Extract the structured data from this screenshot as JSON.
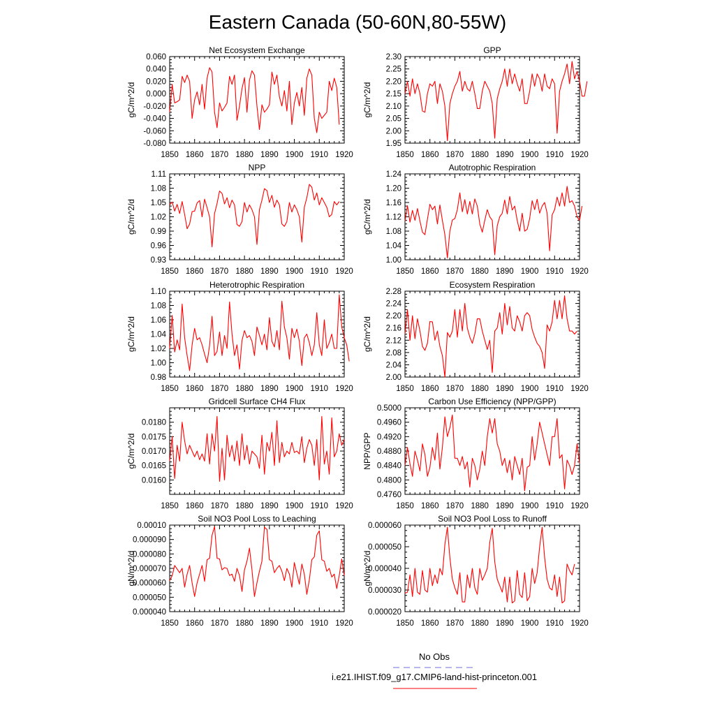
{
  "title": "Eastern Canada (50-60N,80-55W)",
  "series_color": "#ff0000",
  "obs_color": "#6f6fdc",
  "legend": {
    "obs_label": "No Obs",
    "model_label": "i.e21.IHIST.f09_g17.CMIP6-land-hist-princeton.001"
  },
  "chart_data": [
    {
      "type": "line",
      "title": "Net Ecosystem Exchange",
      "ylabel": "gC/m^2/d",
      "xlim": [
        1850,
        1920
      ],
      "xticks": [
        1850,
        1860,
        1870,
        1880,
        1890,
        1900,
        1910,
        1920
      ],
      "ylim": [
        -0.08,
        0.06
      ],
      "yticks": [
        "0.060",
        "0.040",
        "0.020",
        "0.000",
        "-0.020",
        "-0.040",
        "-0.060",
        "-0.080"
      ],
      "x_start": 1850,
      "values": [
        -0.03,
        0.015,
        -0.015,
        -0.013,
        -0.01,
        0.028,
        0.018,
        0.03,
        0.02,
        -0.04,
        -0.01,
        0.003,
        -0.018,
        0.015,
        -0.025,
        0.025,
        0.042,
        0.035,
        -0.03,
        -0.055,
        -0.015,
        -0.028,
        -0.022,
        -0.015,
        0.028,
        0.015,
        0.03,
        -0.043,
        -0.02,
        0.008,
        0.026,
        -0.03,
        0.022,
        0.037,
        0.03,
        -0.02,
        -0.058,
        -0.018,
        -0.03,
        -0.025,
        -0.018,
        0.035,
        0.015,
        0.03,
        -0.005,
        -0.02,
        0.005,
        -0.028,
        0.02,
        -0.05,
        -0.015,
        0.002,
        -0.02,
        0.01,
        -0.035,
        0.025,
        0.04,
        0.03,
        -0.04,
        -0.063,
        -0.03,
        -0.04,
        -0.035,
        -0.03,
        0.02,
        0.005,
        0.025,
        0.01,
        -0.05
      ]
    },
    {
      "type": "line",
      "title": "GPP",
      "ylabel": "gC/m^2/d",
      "xlim": [
        1850,
        1920
      ],
      "xticks": [
        1850,
        1860,
        1870,
        1880,
        1890,
        1900,
        1910,
        1920
      ],
      "ylim": [
        1.95,
        2.3
      ],
      "yticks": [
        "2.30",
        "2.25",
        "2.20",
        "2.15",
        "2.10",
        "2.05",
        "2.00",
        "1.95"
      ],
      "x_start": 1850,
      "values": [
        2.15,
        2.2,
        2.14,
        2.21,
        2.15,
        2.19,
        2.15,
        2.08,
        2.075,
        2.15,
        2.19,
        2.18,
        2.2,
        2.11,
        2.19,
        2.16,
        2.1,
        1.96,
        2.11,
        2.15,
        2.18,
        2.2,
        2.24,
        2.16,
        2.2,
        2.17,
        2.16,
        2.2,
        2.15,
        2.09,
        2.09,
        2.16,
        2.2,
        2.18,
        2.16,
        2.11,
        1.97,
        2.13,
        2.17,
        2.2,
        2.25,
        2.18,
        2.25,
        2.19,
        2.23,
        2.19,
        2.16,
        2.21,
        2.11,
        2.11,
        2.16,
        2.23,
        2.18,
        2.23,
        2.21,
        2.16,
        2.23,
        2.18,
        2.17,
        2.21,
        2.19,
        1.99,
        2.16,
        2.2,
        2.23,
        2.27,
        2.19,
        2.28,
        2.21,
        2.24,
        2.2,
        2.14,
        2.14,
        2.2
      ]
    },
    {
      "type": "line",
      "title": "NPP",
      "ylabel": "gC/m^2/d",
      "xlim": [
        1850,
        1920
      ],
      "xticks": [
        1850,
        1860,
        1870,
        1880,
        1890,
        1900,
        1910,
        1920
      ],
      "ylim": [
        0.93,
        1.11
      ],
      "yticks": [
        "1.11",
        "1.08",
        "1.05",
        "1.02",
        "0.99",
        "0.96",
        "0.93"
      ],
      "x_start": 1850,
      "values": [
        1.045,
        1.051,
        1.032,
        1.046,
        1.027,
        1.052,
        1.025,
        0.995,
        1.005,
        1.031,
        1.032,
        1.049,
        1.054,
        1.02,
        1.057,
        1.039,
        1.02,
        0.957,
        1.027,
        1.048,
        1.074,
        1.069,
        1.047,
        1.06,
        1.039,
        1.055,
        1.045,
        1.004,
        1.0,
        1.01,
        1.05,
        1.03,
        1.045,
        1.035,
        1.02,
        0.962,
        1.035,
        1.055,
        1.079,
        1.075,
        1.05,
        1.065,
        1.04,
        1.055,
        1.045,
        1.005,
        1.0,
        1.01,
        1.05,
        1.03,
        1.045,
        1.035,
        1.02,
        0.967,
        1.04,
        1.06,
        1.088,
        1.082,
        1.055,
        1.07,
        1.045,
        1.06,
        1.05,
        1.04,
        1.02,
        1.025,
        1.052,
        1.045,
        1.052
      ]
    },
    {
      "type": "line",
      "title": "Autotrophic Respiration",
      "ylabel": "gC/m^2/d",
      "xlim": [
        1850,
        1920
      ],
      "xticks": [
        1850,
        1860,
        1870,
        1880,
        1890,
        1900,
        1910,
        1920
      ],
      "ylim": [
        1.0,
        1.24
      ],
      "yticks": [
        "1.24",
        "1.20",
        "1.16",
        "1.12",
        "1.08",
        "1.04",
        "1.00"
      ],
      "x_start": 1850,
      "values": [
        1.108,
        1.151,
        1.105,
        1.138,
        1.11,
        1.143,
        1.108,
        1.077,
        1.07,
        1.113,
        1.155,
        1.14,
        1.15,
        1.1,
        1.153,
        1.11,
        1.07,
        1.005,
        1.08,
        1.111,
        1.115,
        1.14,
        1.187,
        1.134,
        1.168,
        1.128,
        1.163,
        1.128,
        1.17,
        1.15,
        1.1,
        1.077,
        1.11,
        1.14,
        1.12,
        1.11,
        1.014,
        1.095,
        1.12,
        1.13,
        1.167,
        1.128,
        1.177,
        1.139,
        1.15,
        1.11,
        1.08,
        1.13,
        1.08,
        1.085,
        1.115,
        1.165,
        1.14,
        1.169,
        1.13,
        1.15,
        1.16,
        1.13,
        1.025,
        1.125,
        1.14,
        1.175,
        1.15,
        1.187,
        1.15,
        1.205,
        1.16,
        1.165,
        1.15,
        1.12,
        1.11,
        1.15
      ]
    },
    {
      "type": "line",
      "title": "Heterotrophic Respiration",
      "ylabel": "gC/m^2/d",
      "xlim": [
        1850,
        1920
      ],
      "xticks": [
        1850,
        1860,
        1870,
        1880,
        1890,
        1900,
        1910,
        1920
      ],
      "ylim": [
        0.98,
        1.1
      ],
      "yticks": [
        "1.10",
        "1.08",
        "1.06",
        "1.04",
        "1.02",
        "1.00",
        "0.98"
      ],
      "x_start": 1850,
      "values": [
        1.02,
        1.066,
        1.015,
        1.032,
        1.018,
        1.082,
        1.035,
        1.01,
        0.989,
        1.025,
        1.048,
        1.032,
        1.035,
        1.025,
        1.012,
        1.0,
        1.024,
        1.065,
        1.01,
        1.016,
        1.043,
        1.01,
        1.038,
        1.02,
        1.085,
        1.04,
        1.01,
        1.025,
        0.991,
        1.031,
        1.045,
        1.035,
        1.038,
        1.03,
        1.01,
        1.05,
        1.038,
        1.025,
        1.04,
        1.018,
        1.063,
        1.03,
        1.022,
        1.045,
        1.018,
        1.086,
        1.05,
        1.035,
        1.005,
        1.048,
        1.035,
        1.047,
        1.03,
        0.996,
        1.035,
        1.04,
        1.028,
        1.01,
        1.025,
        1.07,
        1.025,
        1.01,
        1.06,
        1.02,
        1.028,
        1.04,
        1.02,
        1.02,
        1.095,
        1.05,
        1.035,
        1.025,
        1.002
      ]
    },
    {
      "type": "line",
      "title": "Ecosystem Respiration",
      "ylabel": "gC/m^2/d",
      "xlim": [
        1850,
        1920
      ],
      "xticks": [
        1850,
        1860,
        1870,
        1880,
        1890,
        1900,
        1910,
        1920
      ],
      "ylim": [
        2.0,
        2.28
      ],
      "yticks": [
        "2.28",
        "2.24",
        "2.20",
        "2.16",
        "2.12",
        "2.08",
        "2.04",
        "2.00"
      ],
      "x_start": 1850,
      "values": [
        2.14,
        2.22,
        2.12,
        2.2,
        2.125,
        2.19,
        2.15,
        2.1,
        2.087,
        2.11,
        2.181,
        2.18,
        2.12,
        2.15,
        2.1,
        2.07,
        2.0,
        2.145,
        2.13,
        2.15,
        2.22,
        2.13,
        2.22,
        2.15,
        2.24,
        2.16,
        2.13,
        2.11,
        2.14,
        2.19,
        2.19,
        2.15,
        2.12,
        2.09,
        2.12,
        2.015,
        2.15,
        2.16,
        2.21,
        2.14,
        2.24,
        2.17,
        2.23,
        2.16,
        2.15,
        2.2,
        2.18,
        2.15,
        2.2,
        2.21,
        2.2,
        2.155,
        2.13,
        2.11,
        2.1,
        2.08,
        2.028,
        2.17,
        2.15,
        2.18,
        2.25,
        2.19,
        2.25,
        2.19,
        2.265,
        2.19,
        2.15,
        2.15,
        2.14,
        2.15
      ]
    },
    {
      "type": "line",
      "title": "Gridcell Surface CH4 Flux",
      "ylabel": "gC/m^2/d",
      "xlim": [
        1850,
        1920
      ],
      "xticks": [
        1850,
        1860,
        1870,
        1880,
        1890,
        1900,
        1910,
        1920
      ],
      "ylim": [
        0.0155,
        0.0185
      ],
      "yticks": [
        "0.0180",
        "0.0175",
        "0.0170",
        "0.0165",
        "0.0160"
      ],
      "x_start": 1850,
      "values": [
        0.01665,
        0.0175,
        0.01605,
        0.0172,
        0.01665,
        0.018,
        0.01735,
        0.0169,
        0.0172,
        0.017,
        0.0168,
        0.017,
        0.0167,
        0.0169,
        0.01665,
        0.0176,
        0.01655,
        0.0176,
        0.017,
        0.0182,
        0.01595,
        0.0171,
        0.016,
        0.01755,
        0.0168,
        0.0172,
        0.01665,
        0.01735,
        0.0165,
        0.0176,
        0.0167,
        0.0172,
        0.01655,
        0.017,
        0.0169,
        0.0168,
        0.0164,
        0.01755,
        0.0162,
        0.0173,
        0.017,
        0.01765,
        0.0165,
        0.01805,
        0.0166,
        0.0173,
        0.0168,
        0.017,
        0.0169,
        0.0173,
        0.01695,
        0.017,
        0.0169,
        0.0175,
        0.0166,
        0.0171,
        0.0174,
        0.0172,
        0.0165,
        0.0174,
        0.016,
        0.0182,
        0.01655,
        0.017,
        0.0162,
        0.01815,
        0.0168,
        0.017,
        0.0176,
        0.0172,
        0.0174
      ]
    },
    {
      "type": "line",
      "title": "Carbon Use Efficiency (NPP/GPP)",
      "ylabel": "NPP/GPP",
      "xlim": [
        1850,
        1920
      ],
      "xticks": [
        1850,
        1860,
        1870,
        1880,
        1890,
        1900,
        1910,
        1920
      ],
      "ylim": [
        0.476,
        0.5
      ],
      "yticks": [
        "0.5000",
        "0.4960",
        "0.4920",
        "0.4880",
        "0.4840",
        "0.4800",
        "0.4760"
      ],
      "x_start": 1850,
      "values": [
        0.484,
        0.489,
        0.4845,
        0.481,
        0.488,
        0.4855,
        0.4825,
        0.49,
        0.487,
        0.481,
        0.4835,
        0.489,
        0.4855,
        0.493,
        0.483,
        0.489,
        0.4975,
        0.492,
        0.4945,
        0.498,
        0.486,
        0.486,
        0.484,
        0.4865,
        0.483,
        0.485,
        0.478,
        0.486,
        0.484,
        0.48,
        0.483,
        0.488,
        0.484,
        0.492,
        0.497,
        0.493,
        0.497,
        0.49,
        0.488,
        0.484,
        0.486,
        0.482,
        0.4855,
        0.48,
        0.4865,
        0.484,
        0.4815,
        0.486,
        0.477,
        0.4835,
        0.484,
        0.492,
        0.4855,
        0.49,
        0.496,
        0.493,
        0.49,
        0.487,
        0.484,
        0.492,
        0.492,
        0.497,
        0.486,
        0.487,
        0.4775,
        0.4855,
        0.484,
        0.4815,
        0.484,
        0.49,
        0.4845
      ]
    },
    {
      "type": "line",
      "title": "Soil NO3 Pool Loss to Leaching",
      "ylabel": "gN/m^2/d",
      "xlim": [
        1850,
        1920
      ],
      "xticks": [
        1850,
        1860,
        1870,
        1880,
        1890,
        1900,
        1910,
        1920
      ],
      "ylim": [
        4e-05,
        0.0001
      ],
      "yticks": [
        "0.00010",
        "0.000090",
        "0.000080",
        "0.000070",
        "0.000060",
        "0.000050",
        "0.000040"
      ],
      "x_start": 1850,
      "values": [
        6.15e-05,
        6.5e-05,
        7.2e-05,
        6.95e-05,
        6.7e-05,
        7e-05,
        5.7e-05,
        6.6e-05,
        7.2e-05,
        6e-05,
        5.05e-05,
        6e-05,
        6.6e-05,
        7.2e-05,
        6.1e-05,
        7.6e-05,
        7.7e-05,
        9.3e-05,
        9.9e-05,
        7.7e-05,
        7.65e-05,
        6.9e-05,
        7.05e-05,
        7e-05,
        6.5e-05,
        6.6e-05,
        6.1e-05,
        7e-05,
        6.5e-05,
        5.4e-05,
        6.9e-05,
        7.5e-05,
        8.4e-05,
        6.9e-05,
        5.05e-05,
        6e-05,
        6.8e-05,
        7.5e-05,
        9.85e-05,
        9.7e-05,
        7.6e-05,
        7.5e-05,
        6.7e-05,
        7e-05,
        7.2e-05,
        6.8e-05,
        6.15e-05,
        7e-05,
        6.6e-05,
        5.7e-05,
        7.4e-05,
        6.65e-05,
        5.9e-05,
        7.3e-05,
        6.6e-05,
        5.2e-05,
        6.2e-05,
        7.6e-05,
        7.8e-05,
        9.3e-05,
        9.6e-05,
        7.6e-05,
        7.5e-05,
        6.8e-05,
        7e-05,
        6.4e-05,
        6.6e-05,
        5.6e-05,
        6.5e-05,
        7.65e-05,
        6.5e-05
      ]
    },
    {
      "type": "line",
      "title": "Soil NO3 Pool Loss to Runoff",
      "ylabel": "gN/m^2/d",
      "xlim": [
        1850,
        1920
      ],
      "xticks": [
        1850,
        1860,
        1870,
        1880,
        1890,
        1900,
        1910,
        1920
      ],
      "ylim": [
        2e-05,
        6e-05
      ],
      "yticks": [
        "0.000060",
        "0.000050",
        "0.000040",
        "0.000030",
        "0.000020"
      ],
      "x_start": 1850,
      "values": [
        2.85e-05,
        2.9e-05,
        3.7e-05,
        2.7e-05,
        4e-05,
        2.9e-05,
        2.8e-05,
        3.9e-05,
        3e-05,
        2.9e-05,
        4e-05,
        3.2e-05,
        3.7e-05,
        3.3e-05,
        4e-05,
        3.7e-05,
        5.1e-05,
        5.9e-05,
        4.5e-05,
        3.5e-05,
        3.1e-05,
        2.8e-05,
        3.8e-05,
        2.45e-05,
        2.45e-05,
        3.7e-05,
        3.1e-05,
        4e-05,
        3.1e-05,
        2.8e-05,
        4e-05,
        3.45e-05,
        3.7e-05,
        4e-05,
        5.2e-05,
        5.85e-05,
        4.3e-05,
        3.5e-05,
        3.2e-05,
        2.9e-05,
        3.6e-05,
        2.45e-05,
        3.6e-05,
        2.4e-05,
        2.5e-05,
        3.9e-05,
        2.8e-05,
        2.65e-05,
        3.8e-05,
        2.5e-05,
        2.7e-05,
        4e-05,
        3.3e-05,
        3.8e-05,
        5e-05,
        5.9e-05,
        4.5e-05,
        3.5e-05,
        3.1e-05,
        3e-05,
        3.7e-05,
        2.7e-05,
        3.6e-05,
        2.4e-05,
        2.5e-05,
        4.2e-05,
        3.9e-05,
        3.7e-05,
        4.2e-05
      ]
    }
  ]
}
